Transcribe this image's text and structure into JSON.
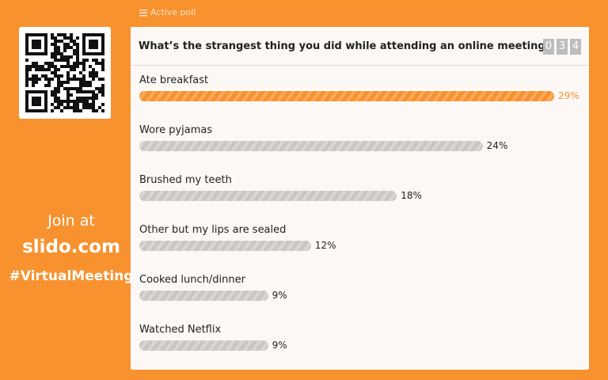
{
  "header": {
    "status": "Active poll"
  },
  "sidebar": {
    "join_text": "Join at",
    "site": "slido.com",
    "hashtag": "#VirtualMeeting"
  },
  "poll": {
    "question": "What’s the strangest thing you did while attending an online meeting?",
    "counter_digits": [
      "0",
      "3",
      "4"
    ],
    "options": [
      {
        "text": "Ate breakfast",
        "percent": 29,
        "percent_label": "29%"
      },
      {
        "text": "Wore pyjamas",
        "percent": 24,
        "percent_label": "24%"
      },
      {
        "text": "Brushed my teeth",
        "percent": 18,
        "percent_label": "18%"
      },
      {
        "text": "Other but my lips are sealed",
        "percent": 12,
        "percent_label": "12%"
      },
      {
        "text": "Cooked lunch/dinner",
        "percent": 9,
        "percent_label": "9%"
      },
      {
        "text": "Watched Netflix",
        "percent": 9,
        "percent_label": "9%"
      }
    ]
  }
}
